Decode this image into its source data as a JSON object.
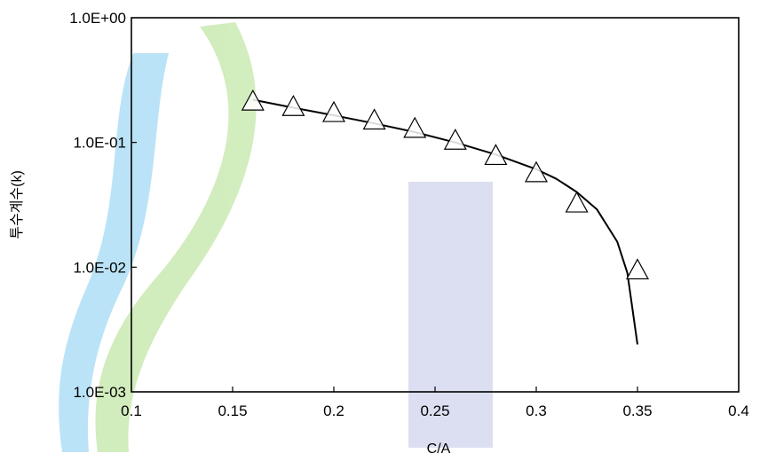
{
  "chart_data": {
    "type": "scatter",
    "title": "",
    "xlabel": "C/A",
    "ylabel": "투수계수(k)",
    "xlim": [
      0.1,
      0.4
    ],
    "ylim": [
      0.001,
      1.0
    ],
    "y_scale": "log",
    "grid": false,
    "x_ticks": [
      "0.1",
      "0.15",
      "0.2",
      "0.25",
      "0.3",
      "0.35",
      "0.4"
    ],
    "y_ticks": [
      "1.0E-03",
      "1.0E-02",
      "1.0E-01",
      "1.0E+00"
    ],
    "series": [
      {
        "marker": "open-triangle",
        "x": [
          0.16,
          0.18,
          0.2,
          0.22,
          0.24,
          0.26,
          0.28,
          0.3,
          0.32,
          0.35
        ],
        "y": [
          0.21,
          0.19,
          0.17,
          0.148,
          0.127,
          0.102,
          0.077,
          0.056,
          0.032,
          0.0093
        ]
      },
      {
        "line": "solid",
        "x": [
          0.16,
          0.18,
          0.2,
          0.22,
          0.24,
          0.26,
          0.28,
          0.3,
          0.31,
          0.32,
          0.33,
          0.34,
          0.345,
          0.35
        ],
        "y": [
          0.22,
          0.19,
          0.165,
          0.142,
          0.121,
          0.1,
          0.08,
          0.061,
          0.051,
          0.04,
          0.029,
          0.016,
          0.009,
          0.0024
        ]
      }
    ]
  }
}
